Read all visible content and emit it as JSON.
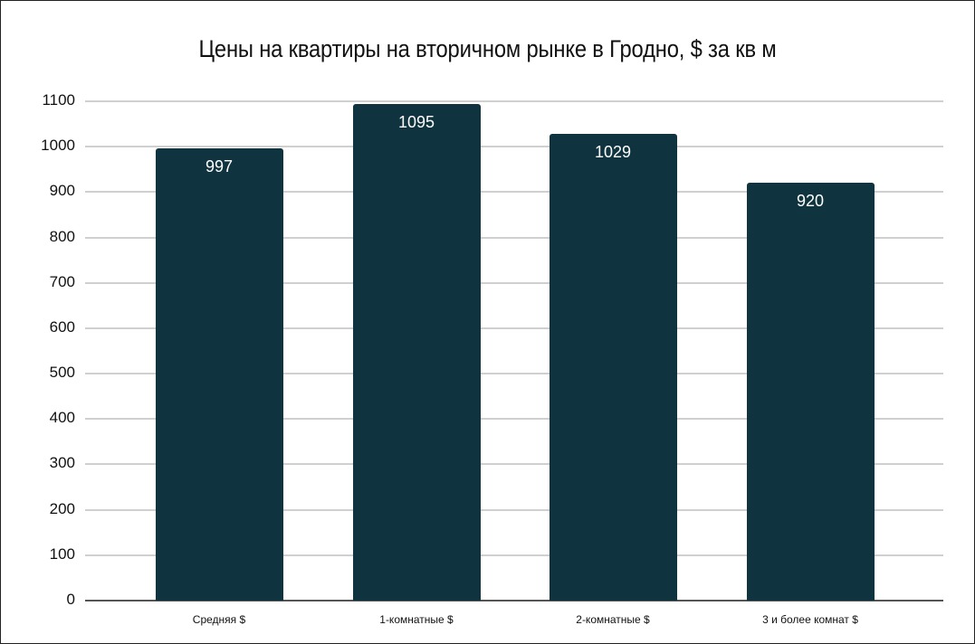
{
  "chart_data": {
    "type": "bar",
    "title": "Цены на квартиры на вторичном рынке в Гродно, $ за кв м",
    "categories": [
      "Средняя $",
      "1-комнатные $",
      "2-комнатные $",
      "3 и более комнат $"
    ],
    "values": [
      997,
      1095,
      1029,
      920
    ],
    "xlabel": "",
    "ylabel": "",
    "ylim": [
      0,
      1100
    ],
    "yticks": [
      "0",
      "100",
      "200",
      "300",
      "400",
      "500",
      "600",
      "700",
      "800",
      "900",
      "1000",
      "1100"
    ],
    "grid": true,
    "legend": "none",
    "bar_color": "#0f343f"
  }
}
